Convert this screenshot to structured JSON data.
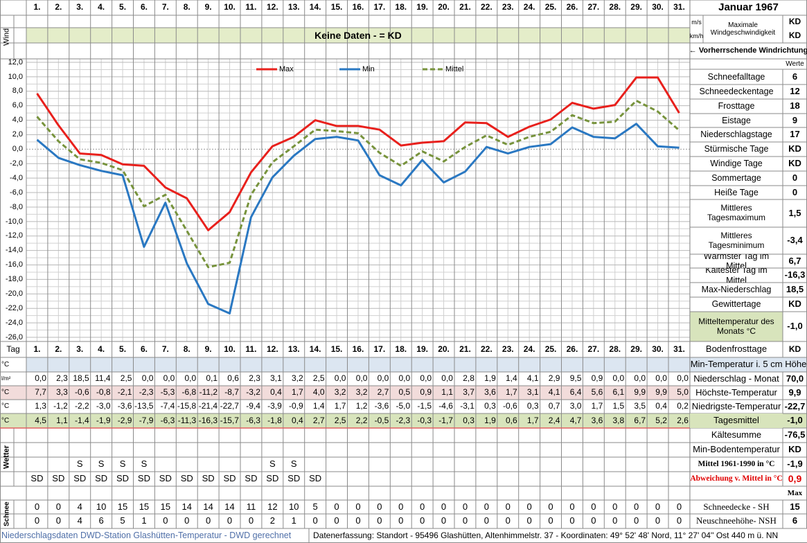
{
  "header": {
    "month": "Januar 1967"
  },
  "wind": {
    "label": "Wind",
    "units": [
      "m/s",
      "km/h"
    ],
    "max_title": "Maximale Windgeschwindigkeit",
    "max_values": [
      "KD",
      "KD"
    ],
    "banner": "Keine Daten -  = KD",
    "direction": "← Vorherrschende Windrichtung"
  },
  "chart_data": {
    "type": "line",
    "categories": [
      "1.",
      "2.",
      "3.",
      "4.",
      "5.",
      "6.",
      "7.",
      "8.",
      "9.",
      "10.",
      "11.",
      "12.",
      "13.",
      "14.",
      "15.",
      "16.",
      "17.",
      "18.",
      "19.",
      "20.",
      "21.",
      "22.",
      "23.",
      "24.",
      "25.",
      "26.",
      "27.",
      "28.",
      "29.",
      "30.",
      "31."
    ],
    "series": [
      {
        "name": "Max",
        "color": "#e8201c",
        "dashed": false,
        "values": [
          7.7,
          3.3,
          -0.6,
          -0.8,
          -2.1,
          -2.3,
          -5.3,
          -6.8,
          -11.2,
          -8.7,
          -3.2,
          0.4,
          1.7,
          4.0,
          3.2,
          3.2,
          2.7,
          0.5,
          0.9,
          1.1,
          3.7,
          3.6,
          1.7,
          3.1,
          4.1,
          6.4,
          5.6,
          6.1,
          9.9,
          9.9,
          5.0
        ],
        "value_labels": [
          "7,7",
          "3,3",
          "-0,6",
          "-0,8",
          "-2,1",
          "-2,3",
          "-5,3",
          "-6,8",
          "-11,2",
          "-8,7",
          "-3,2",
          "0,4",
          "1,7",
          "4,0",
          "3,2",
          "3,2",
          "2,7",
          "0,5",
          "0,9",
          "1,1",
          "3,7",
          "3,6",
          "1,7",
          "3,1",
          "4,1",
          "6,4",
          "5,6",
          "6,1",
          "9,9",
          "9,9",
          "5,0"
        ]
      },
      {
        "name": "Min",
        "color": "#2a78c2",
        "dashed": false,
        "values": [
          1.3,
          -1.2,
          -2.2,
          -3.0,
          -3.6,
          -13.5,
          -7.4,
          -15.8,
          -21.4,
          -22.7,
          -9.4,
          -3.9,
          -0.9,
          1.4,
          1.7,
          1.2,
          -3.6,
          -5.0,
          -1.5,
          -4.6,
          -3.1,
          0.3,
          -0.6,
          0.3,
          0.7,
          3.0,
          1.7,
          1.5,
          3.5,
          0.4,
          0.2
        ],
        "value_labels": [
          "1,3",
          "-1,2",
          "-2,2",
          "-3,0",
          "-3,6",
          "-13,5",
          "-7,4",
          "-15,8",
          "-21,4",
          "-22,7",
          "-9,4",
          "-3,9",
          "-0,9",
          "1,4",
          "1,7",
          "1,2",
          "-3,6",
          "-5,0",
          "-1,5",
          "-4,6",
          "-3,1",
          "0,3",
          "-0,6",
          "0,3",
          "0,7",
          "3,0",
          "1,7",
          "1,5",
          "3,5",
          "0,4",
          "0,2"
        ]
      },
      {
        "name": "Mittel",
        "color": "#77933c",
        "dashed": true,
        "values": [
          4.5,
          1.1,
          -1.4,
          -1.9,
          -2.9,
          -7.9,
          -6.3,
          -11.3,
          -16.3,
          -15.7,
          -6.3,
          -1.8,
          0.4,
          2.7,
          2.5,
          2.2,
          -0.5,
          -2.3,
          -0.3,
          -1.7,
          0.3,
          1.9,
          0.6,
          1.7,
          2.4,
          4.7,
          3.6,
          3.8,
          6.7,
          5.2,
          2.6
        ],
        "value_labels": [
          "4,5",
          "1,1",
          "-1,4",
          "-1,9",
          "-2,9",
          "-7,9",
          "-6,3",
          "-11,3",
          "-16,3",
          "-15,7",
          "-6,3",
          "-1,8",
          "0,4",
          "2,7",
          "2,5",
          "2,2",
          "-0,5",
          "-2,3",
          "-0,3",
          "-1,7",
          "0,3",
          "1,9",
          "0,6",
          "1,7",
          "2,4",
          "4,7",
          "3,6",
          "3,8",
          "6,7",
          "5,2",
          "2,6"
        ]
      }
    ],
    "ylim": [
      -26,
      12
    ],
    "yticks": [
      {
        "value": 12,
        "label": "12,0"
      },
      {
        "value": 10,
        "label": "10,0"
      },
      {
        "value": 8,
        "label": "8,0"
      },
      {
        "value": 6,
        "label": "6,0"
      },
      {
        "value": 4,
        "label": "4,0"
      },
      {
        "value": 2,
        "label": "2,0"
      },
      {
        "value": 0,
        "label": "0,0"
      },
      {
        "value": -2,
        "label": "-2,0"
      },
      {
        "value": -4,
        "label": "-4,0"
      },
      {
        "value": -6,
        "label": "-6,0"
      },
      {
        "value": -8,
        "label": "-8,0"
      },
      {
        "value": -10,
        "label": "-10,0"
      },
      {
        "value": -12,
        "label": "-12,0"
      },
      {
        "value": -14,
        "label": "-14,0"
      },
      {
        "value": -16,
        "label": "-16,0"
      },
      {
        "value": -18,
        "label": "-18,0"
      },
      {
        "value": -20,
        "label": "-20,0"
      },
      {
        "value": -22,
        "label": "-22,0"
      },
      {
        "value": -24,
        "label": "-24,0"
      },
      {
        "value": -26,
        "label": "-26,0"
      }
    ],
    "grid": true
  },
  "stats": {
    "header": "Werte",
    "rows": [
      {
        "label": "Schneefalltage",
        "value": "6"
      },
      {
        "label": "Schneedeckentage",
        "value": "12"
      },
      {
        "label": "Frosttage",
        "value": "18"
      },
      {
        "label": "Eistage",
        "value": "9"
      },
      {
        "label": "Niederschlagstage",
        "value": "17"
      },
      {
        "label": "Stürmische Tage",
        "value": "KD"
      },
      {
        "label": "Windige Tage",
        "value": "KD"
      },
      {
        "label": "Sommertage",
        "value": "0"
      },
      {
        "label": "Heiße Tage",
        "value": "0"
      },
      {
        "label": "Mittleres Tagesmaximum",
        "value": "1,5"
      },
      {
        "label": "Mittleres Tagesminimum",
        "value": "-3,4"
      },
      {
        "label": "Wärmster Tag im Mittel",
        "value": "6,7"
      },
      {
        "label": "Kältester Tag im Mittel",
        "value": "-16,3"
      },
      {
        "label": "Max-Niederschlag",
        "value": "18,5"
      },
      {
        "label": "Gewittertage",
        "value": "KD"
      },
      {
        "label": "Mitteltemperatur des Monats °C",
        "value": "-1,0"
      }
    ]
  },
  "table": {
    "day_label": "Tag",
    "bodenfrost": {
      "label": "Bodenfrosttage",
      "value": "KD"
    },
    "soil": {
      "unit": "°C",
      "label": "Min-Temperatur i. 5 cm Höhe"
    },
    "precip": {
      "unit": "l/m²",
      "label": "Niederschlag - Monat",
      "value": "70,0",
      "cells": [
        "0,0",
        "2,3",
        "18,5",
        "11,4",
        "2,5",
        "0,0",
        "0,0",
        "0,0",
        "0,1",
        "0,6",
        "2,3",
        "3,1",
        "3,2",
        "2,5",
        "0,0",
        "0,0",
        "0,0",
        "0,0",
        "0,0",
        "0,0",
        "2,8",
        "1,9",
        "1,4",
        "4,1",
        "2,9",
        "9,5",
        "0,9",
        "0,0",
        "0,0",
        "0,0",
        "0,0"
      ]
    },
    "max": {
      "unit": "°C",
      "label": "Höchste-Temperatur",
      "value": "9,9"
    },
    "min": {
      "unit": "°C",
      "label": "Niedrigste-Temperatur",
      "value": "-22,7"
    },
    "mean": {
      "unit": "°C",
      "label": "Tagesmittel",
      "value": "-1,0"
    },
    "weather": {
      "label": "Wetter",
      "rows": [
        [
          null,
          null,
          "S",
          "S",
          "S",
          "S",
          null,
          null,
          null,
          null,
          null,
          "S",
          "S",
          null,
          null,
          null,
          null,
          null,
          null,
          null,
          null,
          null,
          null,
          null,
          null,
          null,
          null,
          null,
          null,
          null,
          null
        ],
        [
          "SD",
          "SD",
          "SD",
          "SD",
          "SD",
          "SD",
          "SD",
          "SD",
          "SD",
          "SD",
          "SD",
          "SD",
          "SD",
          "SD",
          null,
          null,
          null,
          null,
          null,
          null,
          null,
          null,
          null,
          null,
          null,
          null,
          null,
          null,
          null,
          null,
          null
        ]
      ]
    },
    "summary": [
      {
        "label": "Kältesumme",
        "value": "-76,5"
      },
      {
        "label": "Min-Bodentemperatur",
        "value": "KD"
      },
      {
        "label": "Mittel 1961-1990 in °C",
        "value": "-1,9"
      },
      {
        "label": "Abweichung v. Mittel in °C",
        "value": "0,9"
      }
    ],
    "max_header": "Max",
    "snow": {
      "label": "Schnee",
      "rows": [
        {
          "label": "Schneedecke -  SH",
          "value": 15,
          "cells": [
            0,
            0,
            4,
            10,
            15,
            15,
            15,
            14,
            14,
            14,
            11,
            12,
            10,
            5,
            0,
            0,
            0,
            0,
            0,
            0,
            0,
            0,
            0,
            0,
            0,
            0,
            0,
            0,
            0,
            0,
            0
          ]
        },
        {
          "label": "Neuschneehöhe- NSH",
          "value": 6,
          "cells": [
            0,
            0,
            4,
            6,
            5,
            1,
            0,
            0,
            0,
            0,
            0,
            2,
            1,
            0,
            0,
            0,
            0,
            0,
            0,
            0,
            0,
            0,
            0,
            0,
            0,
            0,
            0,
            0,
            0,
            0,
            0
          ]
        }
      ]
    }
  },
  "footer": {
    "left": "Niederschlagsdaten DWD-Station Glashütten-Temperatur -  DWD gerechnet",
    "right": "Datenerfassung: Standort -  95496  Glashütten, Altenhimmelstr. 37 - Koordinaten:  49° 52' 48' Nord,  11° 27' 04'' Ost   440 m ü. NN"
  }
}
